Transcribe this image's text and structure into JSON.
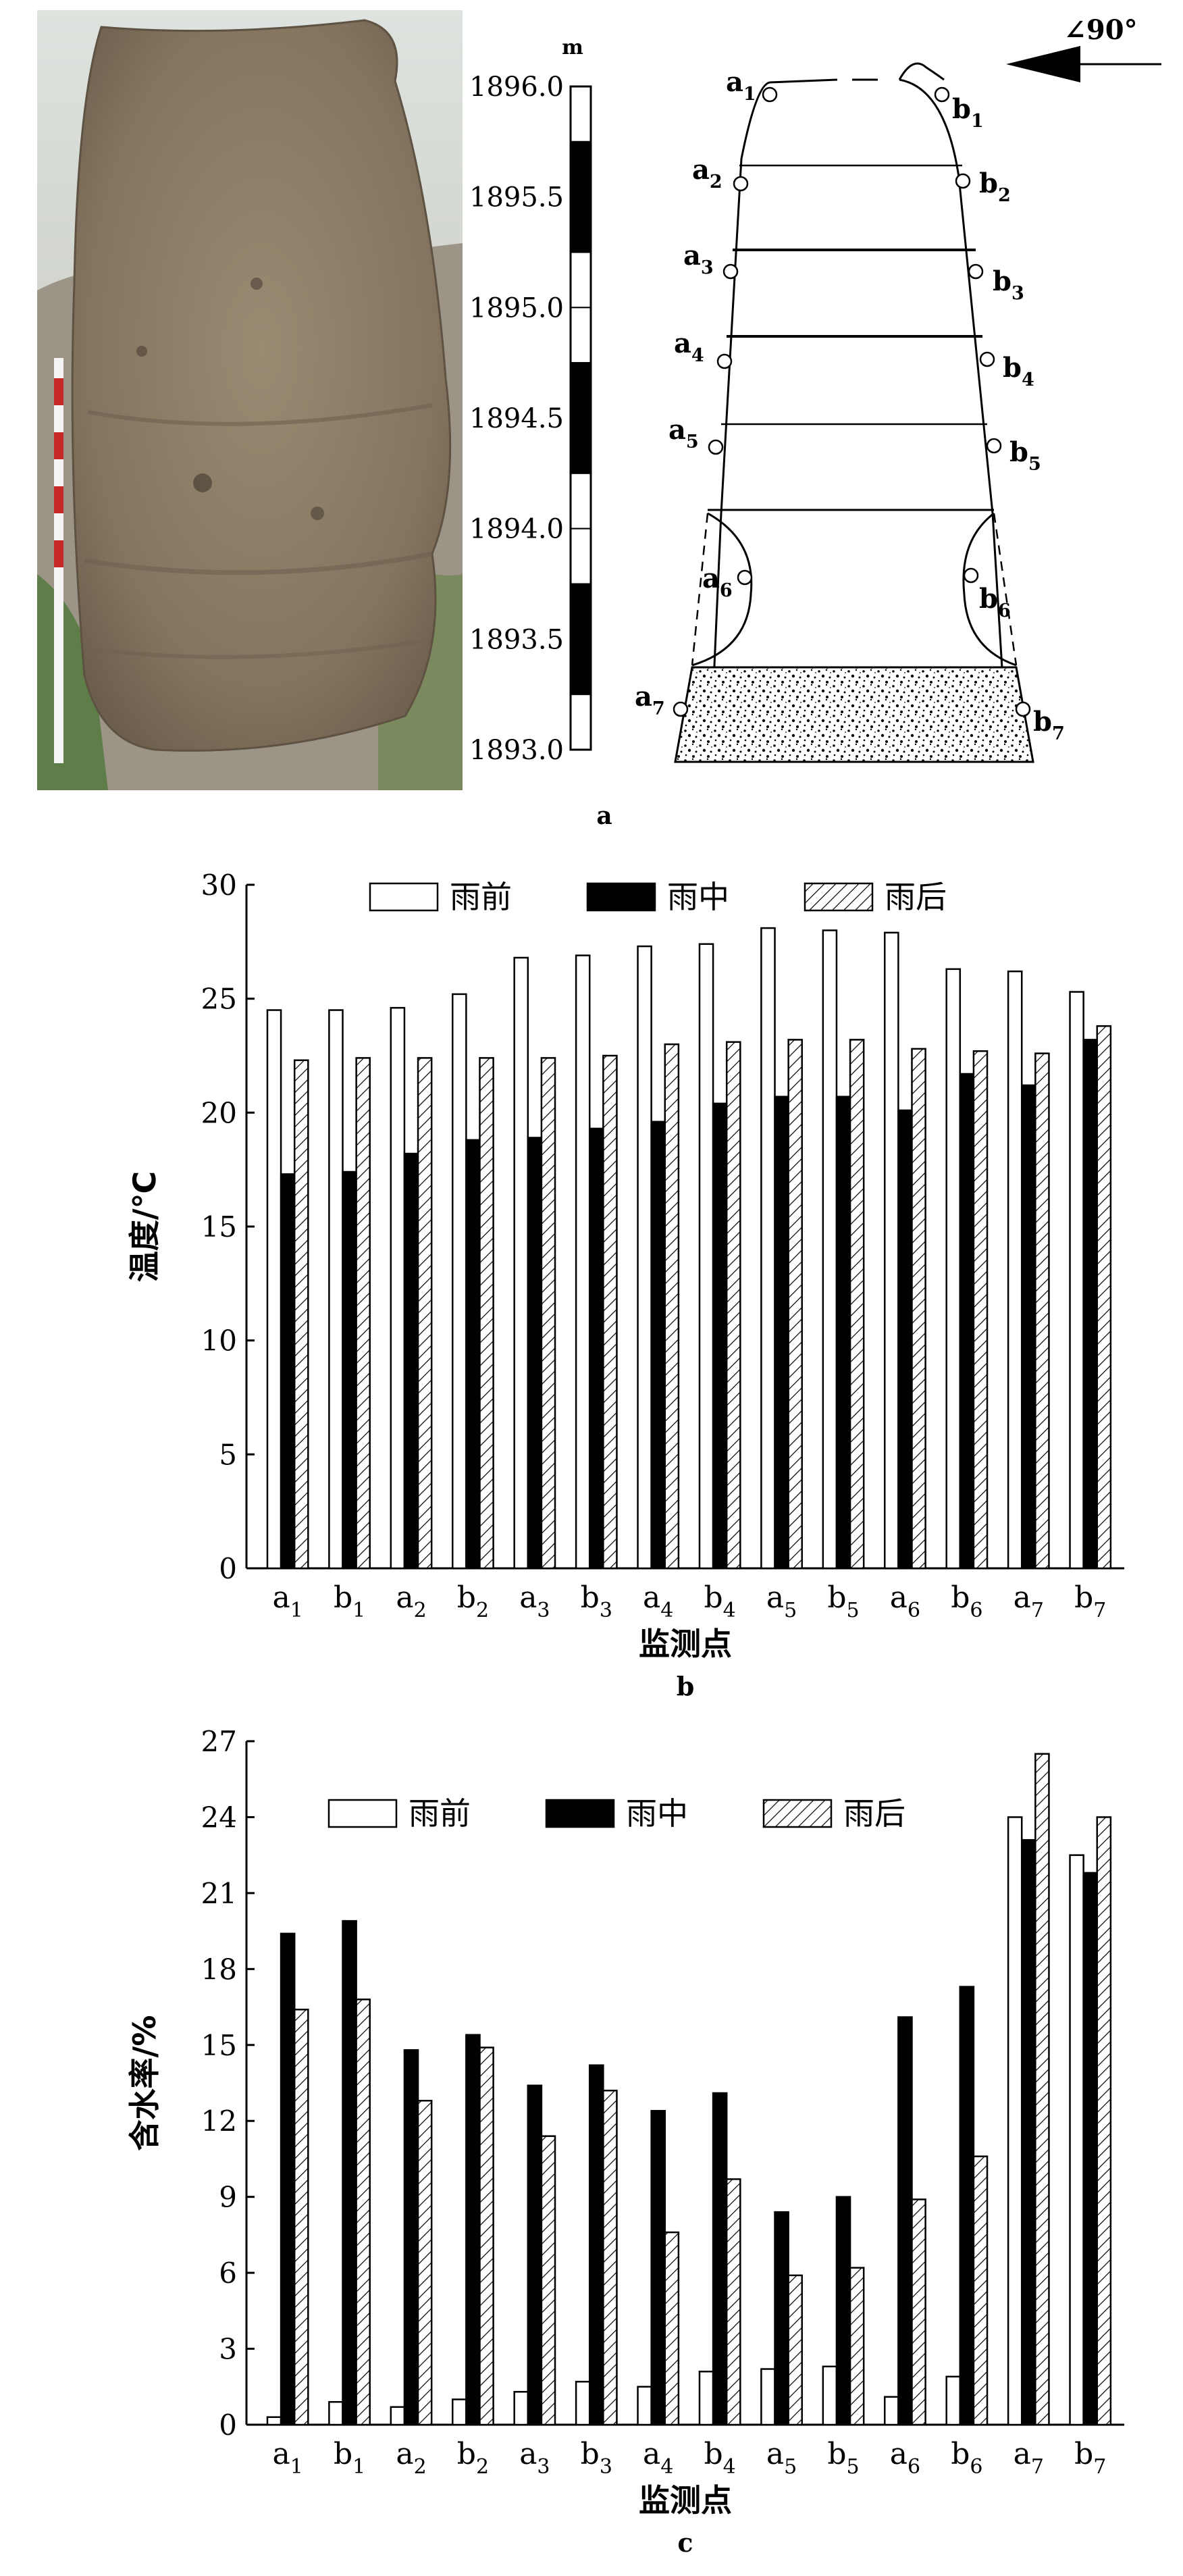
{
  "panel_a": {
    "label": "a",
    "scale_unit": "m",
    "scale_ticks": [
      "1896.0",
      "1895.5",
      "1895.0",
      "1894.5",
      "1894.0",
      "1893.5",
      "1893.0"
    ],
    "angle_label": "∠90°",
    "points_left": [
      {
        "base": "a",
        "sub": "1"
      },
      {
        "base": "a",
        "sub": "2"
      },
      {
        "base": "a",
        "sub": "3"
      },
      {
        "base": "a",
        "sub": "4"
      },
      {
        "base": "a",
        "sub": "5"
      },
      {
        "base": "a",
        "sub": "6"
      },
      {
        "base": "a",
        "sub": "7"
      }
    ],
    "points_right": [
      {
        "base": "b",
        "sub": "1"
      },
      {
        "base": "b",
        "sub": "2"
      },
      {
        "base": "b",
        "sub": "3"
      },
      {
        "base": "b",
        "sub": "4"
      },
      {
        "base": "b",
        "sub": "5"
      },
      {
        "base": "b",
        "sub": "6"
      },
      {
        "base": "b",
        "sub": "7"
      }
    ]
  },
  "colors": {
    "bar_black": "#000000",
    "bar_white": "#ffffff",
    "photo_sky": "#cdd3cc",
    "photo_soil": "#8d7d66",
    "photo_grass": "#6f8a55"
  },
  "chart_data": [
    {
      "type": "bar",
      "panel_label": "b",
      "categories": [
        {
          "base": "a",
          "sub": "1"
        },
        {
          "base": "b",
          "sub": "1"
        },
        {
          "base": "a",
          "sub": "2"
        },
        {
          "base": "b",
          "sub": "2"
        },
        {
          "base": "a",
          "sub": "3"
        },
        {
          "base": "b",
          "sub": "3"
        },
        {
          "base": "a",
          "sub": "4"
        },
        {
          "base": "b",
          "sub": "4"
        },
        {
          "base": "a",
          "sub": "5"
        },
        {
          "base": "b",
          "sub": "5"
        },
        {
          "base": "a",
          "sub": "6"
        },
        {
          "base": "b",
          "sub": "6"
        },
        {
          "base": "a",
          "sub": "7"
        },
        {
          "base": "b",
          "sub": "7"
        }
      ],
      "series": [
        {
          "name": "雨前",
          "values": [
            24.5,
            24.5,
            24.6,
            25.2,
            26.8,
            26.9,
            27.3,
            27.4,
            28.1,
            28.0,
            27.9,
            26.3,
            26.2,
            25.3
          ]
        },
        {
          "name": "雨中",
          "values": [
            17.3,
            17.4,
            18.2,
            18.8,
            18.9,
            19.3,
            19.6,
            20.4,
            20.7,
            20.7,
            20.1,
            21.7,
            21.2,
            23.2
          ]
        },
        {
          "name": "雨后",
          "values": [
            22.3,
            22.4,
            22.4,
            22.4,
            22.4,
            22.5,
            23.0,
            23.1,
            23.2,
            23.2,
            22.8,
            22.7,
            22.6,
            23.8
          ]
        }
      ],
      "ylabel": "温度/℃",
      "xlabel": "监测点",
      "ylim": [
        0,
        30
      ],
      "yticks": [
        0,
        5,
        10,
        15,
        20,
        25,
        30
      ],
      "legend": "top-center",
      "grid": false
    },
    {
      "type": "bar",
      "panel_label": "c",
      "categories": [
        {
          "base": "a",
          "sub": "1"
        },
        {
          "base": "b",
          "sub": "1"
        },
        {
          "base": "a",
          "sub": "2"
        },
        {
          "base": "b",
          "sub": "2"
        },
        {
          "base": "a",
          "sub": "3"
        },
        {
          "base": "b",
          "sub": "3"
        },
        {
          "base": "a",
          "sub": "4"
        },
        {
          "base": "b",
          "sub": "4"
        },
        {
          "base": "a",
          "sub": "5"
        },
        {
          "base": "b",
          "sub": "5"
        },
        {
          "base": "a",
          "sub": "6"
        },
        {
          "base": "b",
          "sub": "6"
        },
        {
          "base": "a",
          "sub": "7"
        },
        {
          "base": "b",
          "sub": "7"
        }
      ],
      "series": [
        {
          "name": "雨前",
          "values": [
            0.3,
            0.9,
            0.7,
            1.0,
            1.3,
            1.7,
            1.5,
            2.1,
            2.2,
            2.3,
            1.1,
            1.9,
            24.0,
            22.5
          ]
        },
        {
          "name": "雨中",
          "values": [
            19.4,
            19.9,
            14.8,
            15.4,
            13.4,
            14.2,
            12.4,
            13.1,
            8.4,
            9.0,
            16.1,
            17.3,
            23.1,
            21.8
          ]
        },
        {
          "name": "雨后",
          "values": [
            16.4,
            16.8,
            12.8,
            14.9,
            11.4,
            13.2,
            7.6,
            9.7,
            5.9,
            6.2,
            8.9,
            10.6,
            26.5,
            24.0
          ]
        }
      ],
      "ylabel": "含水率/%",
      "xlabel": "监测点",
      "ylim": [
        0,
        27
      ],
      "yticks": [
        0,
        3,
        6,
        9,
        12,
        15,
        18,
        21,
        24,
        27
      ],
      "legend": "top-center",
      "grid": false
    }
  ]
}
